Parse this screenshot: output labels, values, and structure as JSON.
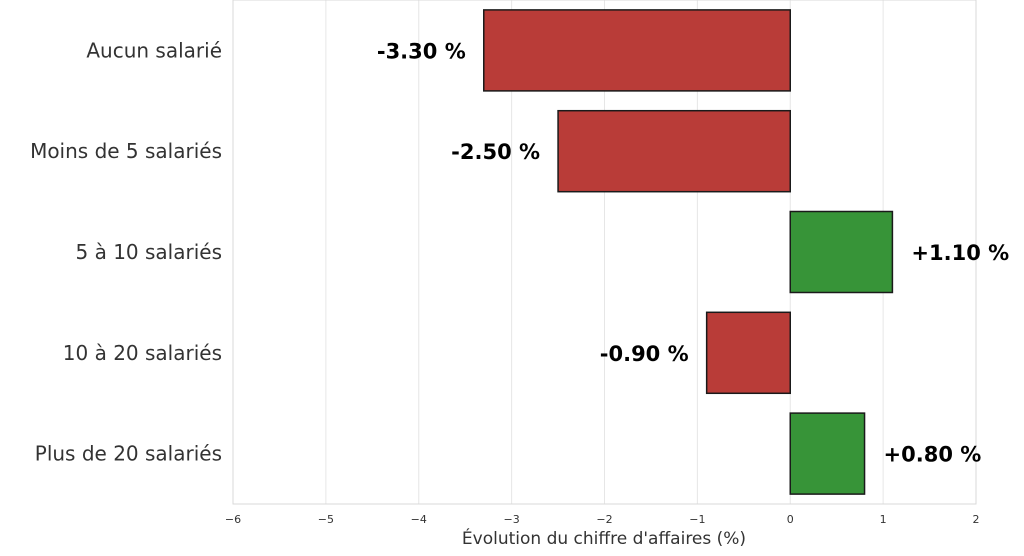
{
  "chart_data": {
    "type": "bar",
    "orientation": "horizontal",
    "categories": [
      "Aucun salarié",
      "Moins de 5 salariés",
      "5 à 10 salariés",
      "10 à 20 salariés",
      "Plus de 20 salariés"
    ],
    "values": [
      -3.3,
      -2.5,
      1.1,
      -0.9,
      0.8
    ],
    "value_labels": [
      "-3.30 %",
      "-2.50 %",
      "+1.10 %",
      "-0.90 %",
      "+0.80 %"
    ],
    "title": "",
    "xlabel": "Évolution du chiffre d'affaires (%)",
    "ylabel": "",
    "xlim": [
      -6,
      2
    ],
    "xticks": [
      -6,
      -5,
      -4,
      -3,
      -2,
      -1,
      0,
      1,
      2
    ],
    "xtick_labels": [
      "−6",
      "−5",
      "−4",
      "−3",
      "−2",
      "−1",
      "0",
      "1",
      "2"
    ],
    "grid": "vertical",
    "colors": {
      "negative": "#b93c38",
      "positive": "#379438"
    }
  }
}
